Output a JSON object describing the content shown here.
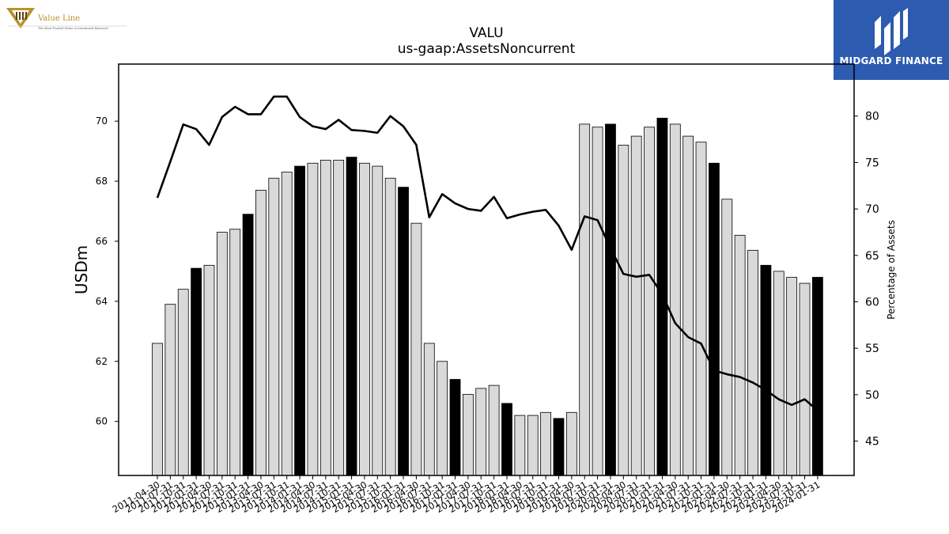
{
  "branding": {
    "left_logo_name": "Value Line",
    "left_logo_tagline": "The Most Trusted Name in Investment Research",
    "right_logo_name": "MIDGARD FINANCE"
  },
  "chart_data": {
    "type": "bar",
    "title": "VALU",
    "subtitle": "us-gaap:AssetsNoncurrent",
    "ylabel": "USDm",
    "y2label": "Percentage of Assets",
    "ylim": [
      58.2,
      71.9
    ],
    "y2lim": [
      41.3,
      85.6
    ],
    "yticks": [
      60,
      62,
      64,
      66,
      68,
      70
    ],
    "y2ticks": [
      45,
      50,
      55,
      60,
      65,
      70,
      75,
      80
    ],
    "categories": [
      "2011-04-30",
      "2011-07-31",
      "2011-10-31",
      "2012-01-31",
      "2012-04-30",
      "2012-07-31",
      "2012-10-31",
      "2013-01-31",
      "2013-04-30",
      "2013-07-31",
      "2013-10-31",
      "2014-01-31",
      "2014-04-30",
      "2014-07-31",
      "2014-10-31",
      "2015-01-31",
      "2015-04-30",
      "2015-07-31",
      "2015-10-31",
      "2016-01-31",
      "2016-04-30",
      "2016-07-31",
      "2016-10-31",
      "2017-01-31",
      "2017-04-30",
      "2017-07-31",
      "2017-10-31",
      "2018-01-31",
      "2018-04-30",
      "2018-07-31",
      "2018-10-31",
      "2019-01-31",
      "2019-04-30",
      "2019-07-31",
      "2019-10-31",
      "2020-01-31",
      "2020-04-30",
      "2020-07-31",
      "2020-10-31",
      "2021-01-31",
      "2021-04-30",
      "2021-07-31",
      "2021-10-31",
      "2022-01-31",
      "2022-04-30",
      "2022-07-31",
      "2022-10-31",
      "2023-01-31",
      "2023-04-30",
      "2023-07-31",
      "2023-10-31",
      "2024-01-31"
    ],
    "highlight_indices": [
      3,
      7,
      11,
      15,
      19,
      23,
      27,
      31,
      35,
      39,
      43,
      47,
      51
    ],
    "series": [
      {
        "kind": "bar",
        "values": [
          62.6,
          63.9,
          64.4,
          65.1,
          65.2,
          66.3,
          66.4,
          66.9,
          67.7,
          68.1,
          68.3,
          68.5,
          68.6,
          68.7,
          68.7,
          68.8,
          68.6,
          68.5,
          68.1,
          67.8,
          66.6,
          62.6,
          62.0,
          61.4,
          60.9,
          61.1,
          61.2,
          60.6,
          60.2,
          60.2,
          60.3,
          60.1,
          60.3,
          69.9,
          69.8,
          69.9,
          69.2,
          69.5,
          69.8,
          70.1,
          69.9,
          69.5,
          69.3,
          68.6,
          67.4,
          66.2,
          65.7,
          65.2,
          65.0,
          64.8,
          64.6,
          64.8
        ],
        "color": "#d9d9d9",
        "highlight_color": "#000000"
      },
      {
        "kind": "line",
        "axis": "right",
        "values": [
          71.2,
          75.1,
          79.1,
          78.6,
          76.9,
          79.9,
          81.0,
          80.2,
          80.2,
          82.1,
          82.1,
          79.9,
          78.9,
          78.6,
          79.6,
          78.5,
          78.4,
          78.2,
          80.0,
          78.9,
          76.9,
          69.1,
          71.6,
          70.6,
          70.0,
          69.8,
          71.3,
          69.0,
          69.4,
          69.7,
          69.9,
          68.2,
          65.6,
          69.2,
          68.8,
          65.8,
          63.0,
          62.7,
          62.9,
          60.8,
          57.7,
          56.2,
          55.5,
          52.6,
          52.2,
          51.9,
          51.3,
          50.5,
          49.5,
          48.9,
          49.5,
          48.3
        ],
        "color": "#000000"
      }
    ],
    "grid": false,
    "legend": "none"
  }
}
